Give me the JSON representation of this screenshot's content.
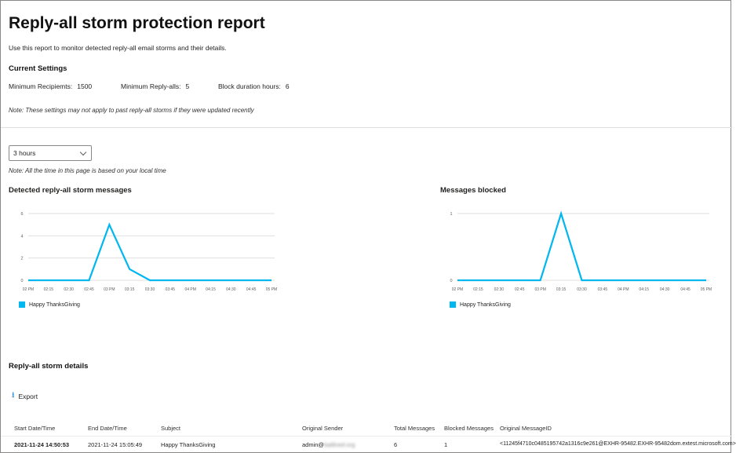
{
  "page": {
    "title": "Reply-all storm protection report",
    "description": "Use this report to monitor detected reply-all email storms and their details."
  },
  "settings": {
    "heading": "Current Settings",
    "min_recipients_label": "Minimum Recipiemts:",
    "min_recipients_value": "1500",
    "min_replyalls_label": "Minimum Reply-alls:",
    "min_replyalls_value": "5",
    "block_duration_label": "Block duration hours:",
    "block_duration_value": "6",
    "note": "Note: These settings may not apply to past reply-all storms if they were updated recently"
  },
  "filter": {
    "time_range": "3 hours",
    "note": "Note: All the time in this page is based on your local time"
  },
  "colors": {
    "series": "#00b7f0",
    "grid": "#e1dfdd",
    "accent": "#0078d4"
  },
  "chart_data": [
    {
      "type": "line",
      "title": "Detected reply-all storm messages",
      "x": [
        "02 PM",
        "02:15",
        "02:30",
        "02:45",
        "03 PM",
        "03:15",
        "03:30",
        "03:45",
        "04 PM",
        "04:15",
        "04:30",
        "04:45",
        "05 PM"
      ],
      "y_ticks": [
        "0",
        "2",
        "4",
        "6"
      ],
      "ylim": [
        0,
        6
      ],
      "grid": true,
      "legend": "bottom-left",
      "series": [
        {
          "name": "Happy ThanksGiving",
          "values": [
            0,
            0,
            0,
            0,
            5,
            1,
            0,
            0,
            0,
            0,
            0,
            0,
            0
          ]
        }
      ]
    },
    {
      "type": "line",
      "title": "Messages blocked",
      "x": [
        "02 PM",
        "02:15",
        "02:30",
        "02:45",
        "03 PM",
        "03:15",
        "03:30",
        "03:45",
        "04 PM",
        "04:15",
        "04:30",
        "04:45",
        "05 PM"
      ],
      "y_ticks": [
        "0",
        "1"
      ],
      "ylim": [
        0,
        1
      ],
      "grid": true,
      "legend": "bottom-left",
      "series": [
        {
          "name": "Happy ThanksGiving",
          "values": [
            0,
            0,
            0,
            0,
            0,
            1,
            0,
            0,
            0,
            0,
            0,
            0,
            0
          ]
        }
      ]
    }
  ],
  "details": {
    "heading": "Reply-all storm details",
    "export_label": "Export",
    "export_icon": "download-icon",
    "columns": [
      "Start Date/Time",
      "End Date/Time",
      "Subject",
      "Original Sender",
      "Total Messages",
      "Blocked Messages",
      "Original MessageID"
    ],
    "rows": [
      {
        "start": "2021-11-24 14:50:53",
        "end": "2021-11-24 15:05:49",
        "subject": "Happy ThanksGiving",
        "sender_user": "admin@",
        "sender_domain": "batlined.org",
        "total": "6",
        "blocked": "1",
        "message_id": "<11245f4710c0485195742a1316c9e261@EXHR-95482.EXHR-95482dom.extest.microsoft.com>"
      }
    ]
  }
}
